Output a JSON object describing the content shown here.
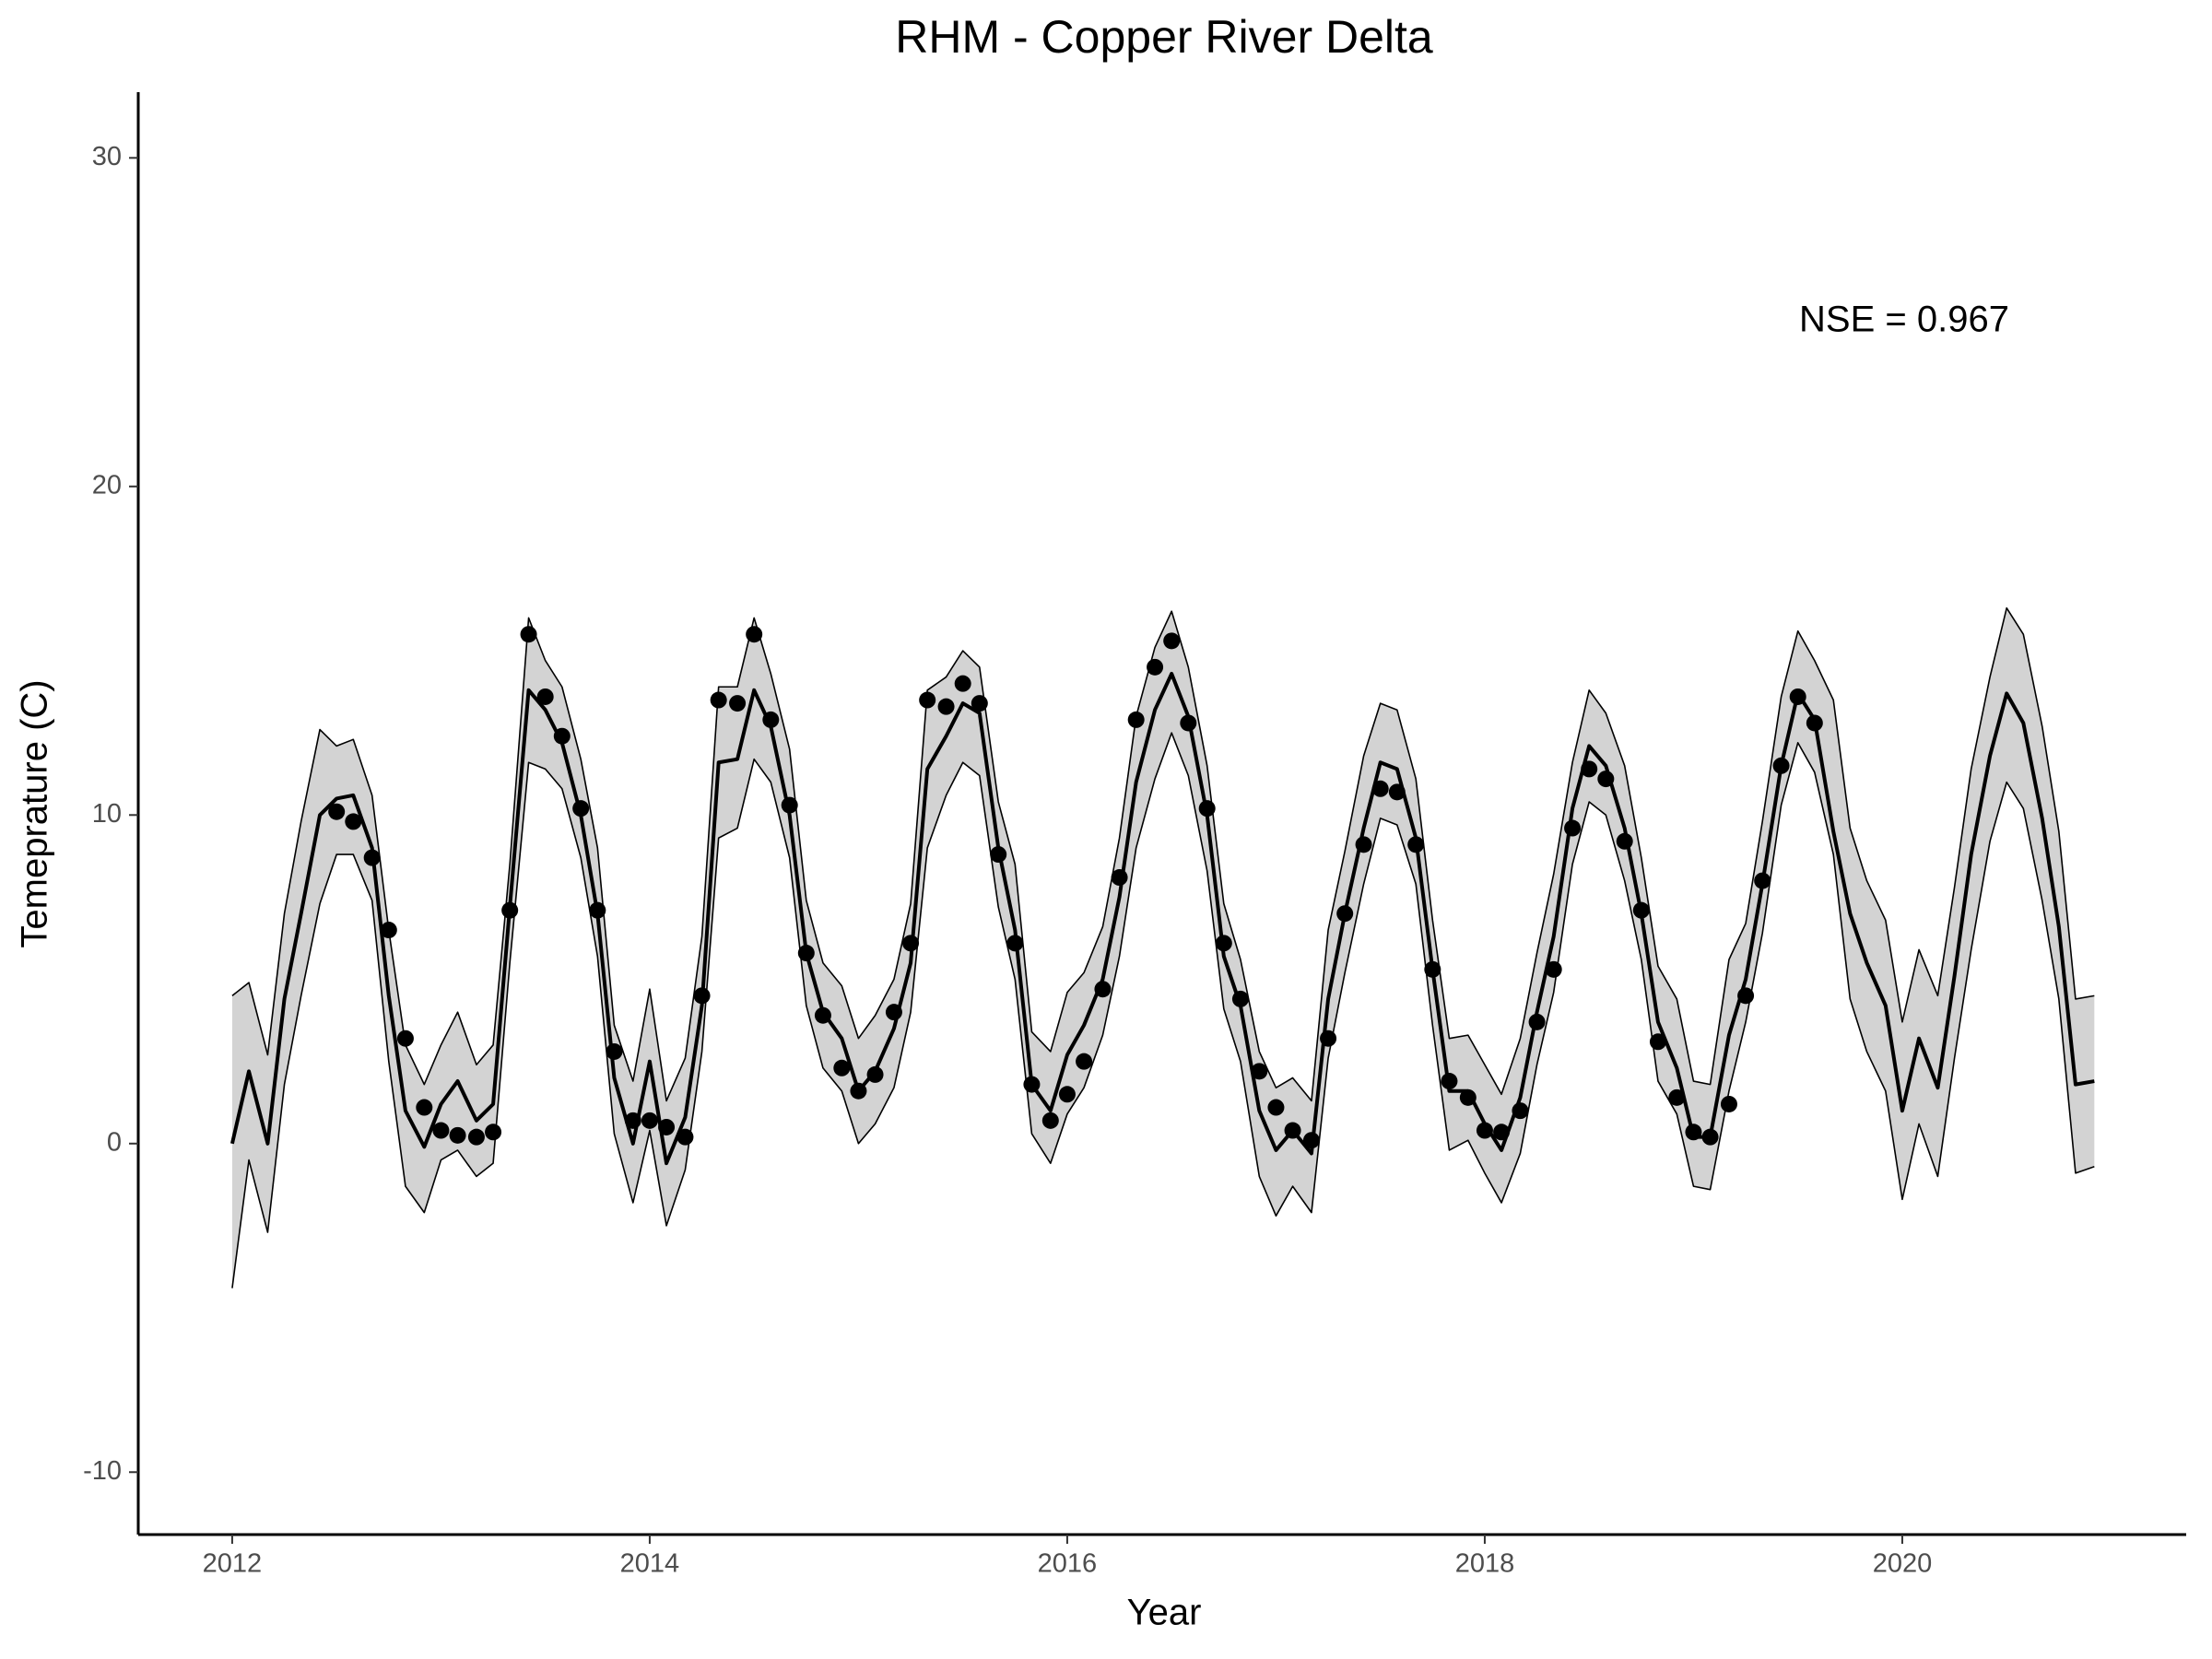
{
  "chart_data": {
    "type": "line",
    "title": "RHM - Copper River Delta",
    "x_label": "Year",
    "y_label": "Temeprature (C)",
    "annotation": "NSE = 0.967",
    "xlim": [
      2011.55,
      2021.36
    ],
    "ylim": [
      -11.9,
      32
    ],
    "xticks": [
      2012,
      2014,
      2016,
      2018,
      2020
    ],
    "yticks": [
      -10,
      0,
      10,
      20,
      30
    ],
    "grid": false,
    "x": [
      2012,
      2012.08,
      2012.17,
      2012.25,
      2012.33,
      2012.42,
      2012.5,
      2012.58,
      2012.67,
      2012.75,
      2012.83,
      2012.92,
      2013,
      2013.08,
      2013.17,
      2013.25,
      2013.33,
      2013.42,
      2013.5,
      2013.58,
      2013.67,
      2013.75,
      2013.83,
      2013.92,
      2014,
      2014.08,
      2014.17,
      2014.25,
      2014.33,
      2014.42,
      2014.5,
      2014.58,
      2014.67,
      2014.75,
      2014.83,
      2014.92,
      2015,
      2015.08,
      2015.17,
      2015.25,
      2015.33,
      2015.42,
      2015.5,
      2015.58,
      2015.67,
      2015.75,
      2015.83,
      2015.92,
      2016,
      2016.08,
      2016.17,
      2016.25,
      2016.33,
      2016.42,
      2016.5,
      2016.58,
      2016.67,
      2016.75,
      2016.83,
      2016.92,
      2017,
      2017.08,
      2017.17,
      2017.25,
      2017.33,
      2017.42,
      2017.5,
      2017.58,
      2017.67,
      2017.75,
      2017.83,
      2017.92,
      2018,
      2018.08,
      2018.17,
      2018.25,
      2018.33,
      2018.42,
      2018.5,
      2018.58,
      2018.67,
      2018.75,
      2018.83,
      2018.92,
      2019,
      2019.08,
      2019.17,
      2019.25,
      2019.33,
      2019.42,
      2019.5,
      2019.58,
      2019.67,
      2019.75,
      2019.83,
      2019.92,
      2020,
      2020.08,
      2020.17,
      2020.25,
      2020.33,
      2020.42,
      2020.5,
      2020.58,
      2020.67,
      2020.75,
      2020.83,
      2020.92
    ],
    "series": [
      {
        "color": "#000000",
        "values": [
          0,
          2.2,
          0,
          4.4,
          7,
          10,
          10.5,
          10.6,
          9,
          4.5,
          1,
          -0.1,
          1.2,
          1.9,
          0.7,
          1.2,
          7.2,
          13.8,
          13.2,
          12.2,
          10,
          7,
          2,
          0,
          2.5,
          -0.6,
          0.8,
          4.2,
          11.6,
          11.7,
          13.8,
          12.7,
          10,
          5.8,
          4,
          3.2,
          1.6,
          2.2,
          3.5,
          5.5,
          11.4,
          12.4,
          13.4,
          13.1,
          9,
          6.5,
          1.8,
          1,
          2.7,
          3.6,
          5,
          7.5,
          11,
          13.2,
          14.3,
          13,
          10,
          5.7,
          4.2,
          1,
          -0.2,
          0.4,
          -0.3,
          4.4,
          7,
          9.6,
          11.6,
          11.4,
          9.3,
          5.3,
          1.6,
          1.6,
          0.6,
          -0.2,
          1.4,
          4,
          6.3,
          10.2,
          12.1,
          11.5,
          9.6,
          7,
          3.7,
          2.3,
          0.2,
          0.2,
          3.3,
          5,
          7.9,
          11.5,
          13.7,
          12.9,
          9.5,
          7,
          5.5,
          4.2,
          1,
          3.2,
          1.7,
          5.1,
          8.8,
          11.8,
          13.7,
          12.8,
          9.9,
          6.6,
          1.8,
          1.9
        ]
      }
    ],
    "band": {
      "color": "#d3d3d3",
      "upper": [
        4.5,
        4.9,
        2.7,
        7,
        9.8,
        12.6,
        12.1,
        12.3,
        10.6,
        6.5,
        3,
        1.8,
        3,
        4,
        2.4,
        3,
        8.5,
        16,
        14.7,
        13.9,
        11.7,
        9,
        3.6,
        1.9,
        4.7,
        1.3,
        2.6,
        6.3,
        13.9,
        13.9,
        16,
        14.3,
        12,
        7.4,
        5.5,
        4.8,
        3.2,
        3.9,
        5,
        7.3,
        13.8,
        14.2,
        15,
        14.5,
        10.4,
        8.5,
        3.4,
        2.8,
        4.6,
        5.2,
        6.6,
        9.3,
        13,
        15.1,
        16.2,
        14.5,
        11.5,
        7.3,
        5.6,
        2.8,
        1.7,
        2,
        1.3,
        6.5,
        8.9,
        11.8,
        13.4,
        13.2,
        11.1,
        6.8,
        3.2,
        3.3,
        2.4,
        1.5,
        3.2,
        5.8,
        8.2,
        11.6,
        13.8,
        13.1,
        11.5,
        8.7,
        5.4,
        4.4,
        1.9,
        1.8,
        5.6,
        6.7,
        9.8,
        13.6,
        15.6,
        14.7,
        13.5,
        9.6,
        8,
        6.8,
        3.7,
        5.9,
        4.5,
        7.8,
        11.4,
        14.2,
        16.3,
        15.5,
        12.7,
        9.5,
        4.4,
        4.5
      ],
      "lower": [
        -4.4,
        -0.5,
        -2.7,
        1.8,
        4.5,
        7.3,
        8.8,
        8.8,
        7.4,
        2.5,
        -1.3,
        -2.1,
        -0.5,
        -0.2,
        -1,
        -0.6,
        5.5,
        11.6,
        11.4,
        10.8,
        8.7,
        5.7,
        0.3,
        -1.8,
        0.4,
        -2.5,
        -0.8,
        2.8,
        9.3,
        9.6,
        11.7,
        11,
        8.7,
        4.2,
        2.3,
        1.6,
        0,
        0.6,
        1.7,
        4,
        9,
        10.6,
        11.6,
        11.2,
        7.2,
        5,
        0.3,
        -0.6,
        0.9,
        1.7,
        3.3,
        5.7,
        9,
        11.1,
        12.5,
        11.2,
        8.3,
        4.1,
        2.5,
        -1,
        -2.2,
        -1.3,
        -2.1,
        2.6,
        5.2,
        7.9,
        9.9,
        9.7,
        7.9,
        3.6,
        -0.2,
        0.1,
        -0.9,
        -1.8,
        -0.3,
        2.4,
        4.6,
        8.5,
        10.4,
        10,
        8,
        5.6,
        1.9,
        0.9,
        -1.3,
        -1.4,
        1.6,
        3.7,
        6.4,
        10.3,
        12.2,
        11.3,
        8.8,
        4.4,
        2.8,
        1.6,
        -1.7,
        0.6,
        -1,
        2.6,
        5.9,
        9.2,
        11,
        10.2,
        7.4,
        4.4,
        -0.9,
        -0.7
      ]
    },
    "points": {
      "color": "#000000",
      "values": [
        null,
        null,
        null,
        null,
        null,
        null,
        10.1,
        9.8,
        8.7,
        6.5,
        3.2,
        1.1,
        0.4,
        0.25,
        0.2,
        0.35,
        7.1,
        15.5,
        13.6,
        12.4,
        10.2,
        7.1,
        2.8,
        0.7,
        0.7,
        0.5,
        0.2,
        4.5,
        13.5,
        13.4,
        15.5,
        12.9,
        10.3,
        5.8,
        3.9,
        2.3,
        1.6,
        2.1,
        4,
        6.1,
        13.5,
        13.3,
        14,
        13.4,
        8.8,
        6.1,
        1.8,
        0.7,
        1.5,
        2.5,
        4.7,
        8.1,
        12.9,
        14.5,
        15.3,
        12.8,
        10.2,
        6.1,
        4.4,
        2.2,
        1.1,
        0.4,
        0.1,
        3.2,
        7,
        9.1,
        10.8,
        10.7,
        9.1,
        5.3,
        1.9,
        1.4,
        0.4,
        0.35,
        1,
        3.7,
        5.3,
        9.6,
        11.4,
        11.1,
        9.2,
        7.1,
        3.1,
        1.4,
        0.35,
        0.2,
        1.2,
        4.5,
        8,
        11.5,
        13.6,
        12.8,
        null,
        null,
        null,
        null,
        null,
        null,
        null,
        null,
        null,
        null,
        null,
        null,
        null,
        null,
        null,
        null
      ]
    }
  }
}
